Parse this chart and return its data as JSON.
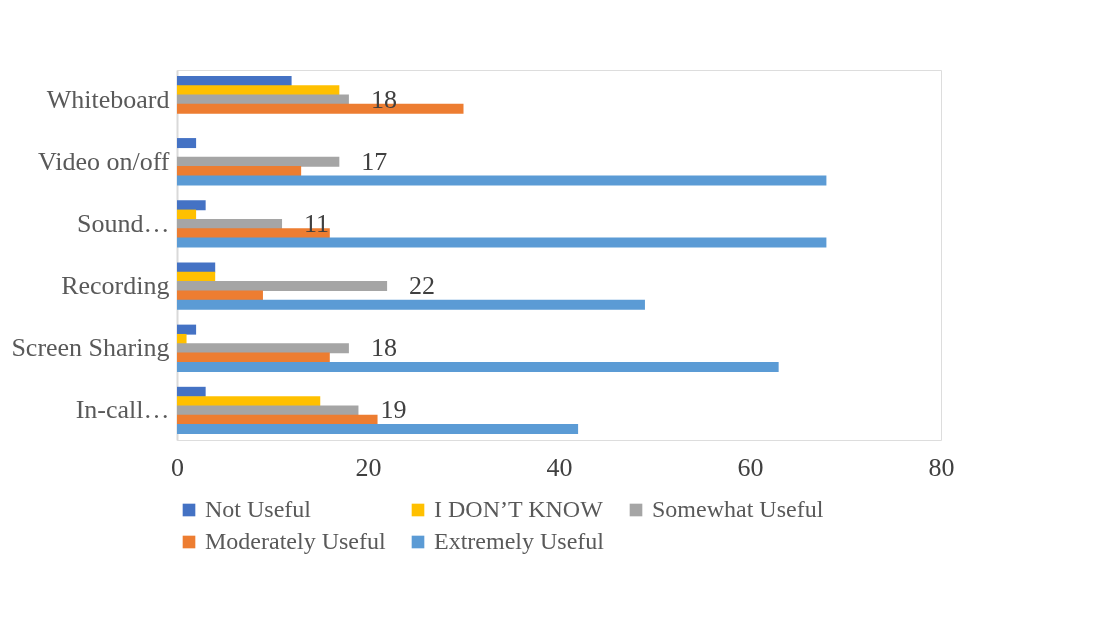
{
  "chart_data": {
    "type": "bar",
    "orientation": "horizontal",
    "categories": [
      "Whiteboard",
      "Video on/off",
      "Sound…",
      "Recording",
      "Screen Sharing",
      "In-call…"
    ],
    "series": [
      {
        "name": "Not Useful",
        "color": "#4472c4",
        "values": [
          12,
          2,
          3,
          4,
          2,
          3
        ]
      },
      {
        "name": "I DON’T KNOW",
        "color": "#ffc000",
        "values": [
          17,
          null,
          2,
          4,
          1,
          15
        ]
      },
      {
        "name": "Somewhat Useful",
        "color": "#a5a5a5",
        "values": [
          18,
          17,
          11,
          22,
          18,
          19
        ],
        "value_labels": [
          "18",
          "17",
          "11",
          "22",
          "18",
          "19"
        ]
      },
      {
        "name": "Moderately Useful",
        "color": "#ed7d31",
        "values": [
          30,
          13,
          16,
          9,
          16,
          21
        ]
      },
      {
        "name": "Extremely Useful",
        "color": "#5b9bd5",
        "values": [
          null,
          68,
          68,
          49,
          63,
          42
        ]
      }
    ],
    "xlim": [
      0,
      80
    ],
    "xticks": [
      0,
      20,
      40,
      60,
      80
    ],
    "grid": false,
    "legend": "bottom"
  }
}
